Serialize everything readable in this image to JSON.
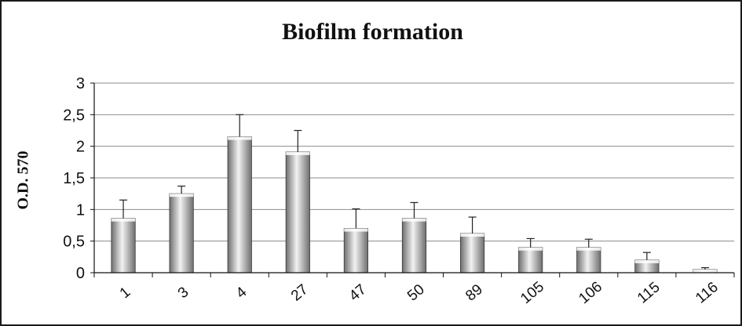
{
  "chart_data": {
    "type": "bar",
    "title": "Biofilm formation",
    "xlabel": "",
    "ylabel": "O.D. 570",
    "categories": [
      "1",
      "3",
      "4",
      "27",
      "47",
      "50",
      "89",
      "105",
      "106",
      "115",
      "116"
    ],
    "values": [
      0.86,
      1.25,
      2.15,
      1.91,
      0.7,
      0.86,
      0.62,
      0.4,
      0.4,
      0.2,
      0.05
    ],
    "error": [
      0.29,
      0.12,
      0.35,
      0.34,
      0.31,
      0.25,
      0.26,
      0.14,
      0.13,
      0.12,
      0.03
    ],
    "ylim": [
      0,
      3
    ],
    "yticks": [
      0,
      0.5,
      1,
      1.5,
      2,
      2.5,
      3
    ],
    "ytick_labels": [
      "0",
      "0,5",
      "1",
      "1,5",
      "2",
      "2,5",
      "3"
    ],
    "grid": true,
    "colors": {
      "bar_dark": "#6e6e6e",
      "bar_light": "#f2f2f2",
      "grid": "#8c8c8c"
    }
  }
}
